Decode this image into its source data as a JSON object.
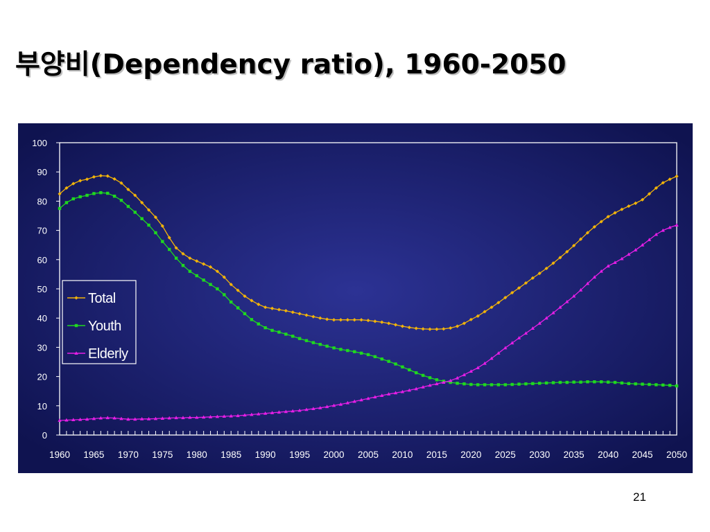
{
  "slide": {
    "title": "부양비(Dependency ratio), 1960-2050",
    "page_number": "21"
  },
  "chart_data": {
    "type": "line",
    "title": "",
    "xlabel": "",
    "ylabel": "",
    "xlim": [
      1960,
      2050
    ],
    "ylim": [
      0,
      100
    ],
    "y_ticks": [
      "0",
      "10",
      "20",
      "30",
      "40",
      "50",
      "60",
      "70",
      "80",
      "90",
      "100"
    ],
    "x_ticks": [
      "1960",
      "1965",
      "1970",
      "1975",
      "1980",
      "1985",
      "1990",
      "1995",
      "2000",
      "2005",
      "2010",
      "2015",
      "2020",
      "2025",
      "2030",
      "2035",
      "2040",
      "2045",
      "2050"
    ],
    "grid": false,
    "legend": "middle-left",
    "colors": {
      "plot_background_outer": "#0f1350",
      "plot_background_inner": "#2c3294",
      "axis": "#ffffff",
      "tick_text": "#ffffff"
    },
    "series": [
      {
        "name": "Total",
        "color": "#f2b40a",
        "marker": "diamond",
        "anchors": [
          [
            1960,
            82.5
          ],
          [
            1961,
            84.5
          ],
          [
            1962,
            86
          ],
          [
            1963,
            87
          ],
          [
            1964,
            87.5
          ],
          [
            1965,
            88.3
          ],
          [
            1966,
            88.7
          ],
          [
            1967,
            88.6
          ],
          [
            1968,
            87.6
          ],
          [
            1969,
            86.2
          ],
          [
            1970,
            84
          ],
          [
            1971,
            82
          ],
          [
            1972,
            79.5
          ],
          [
            1973,
            77
          ],
          [
            1974,
            74.5
          ],
          [
            1975,
            71.5
          ],
          [
            1976,
            67.5
          ],
          [
            1977,
            64
          ],
          [
            1978,
            62
          ],
          [
            1979,
            60.5
          ],
          [
            1980,
            59.5
          ],
          [
            1981,
            58.5
          ],
          [
            1982,
            57.5
          ],
          [
            1983,
            56
          ],
          [
            1984,
            54
          ],
          [
            1985,
            51.5
          ],
          [
            1986,
            49.5
          ],
          [
            1987,
            47.5
          ],
          [
            1988,
            46
          ],
          [
            1989,
            44.7
          ],
          [
            1990,
            43.7
          ],
          [
            1991,
            43.3
          ],
          [
            1992,
            42.9
          ],
          [
            1993,
            42.5
          ],
          [
            1994,
            42
          ],
          [
            1995,
            41.5
          ],
          [
            1996,
            41
          ],
          [
            1997,
            40.5
          ],
          [
            1998,
            40
          ],
          [
            1999,
            39.6
          ],
          [
            2000,
            39.4
          ],
          [
            2001,
            39.4
          ],
          [
            2002,
            39.4
          ],
          [
            2003,
            39.4
          ],
          [
            2004,
            39.4
          ],
          [
            2005,
            39.2
          ],
          [
            2006,
            38.9
          ],
          [
            2007,
            38.6
          ],
          [
            2008,
            38.2
          ],
          [
            2009,
            37.7
          ],
          [
            2010,
            37.2
          ],
          [
            2011,
            36.8
          ],
          [
            2012,
            36.5
          ],
          [
            2013,
            36.3
          ],
          [
            2014,
            36.2
          ],
          [
            2015,
            36.2
          ],
          [
            2016,
            36.3
          ],
          [
            2017,
            36.6
          ],
          [
            2018,
            37.2
          ],
          [
            2019,
            38.2
          ],
          [
            2020,
            39.5
          ],
          [
            2021,
            40.7
          ],
          [
            2022,
            42.2
          ],
          [
            2023,
            43.7
          ],
          [
            2024,
            45.3
          ],
          [
            2025,
            47
          ],
          [
            2026,
            48.7
          ],
          [
            2027,
            50.3
          ],
          [
            2028,
            52
          ],
          [
            2029,
            53.7
          ],
          [
            2030,
            55.3
          ],
          [
            2031,
            57
          ],
          [
            2032,
            58.8
          ],
          [
            2033,
            60.7
          ],
          [
            2034,
            62.7
          ],
          [
            2035,
            64.8
          ],
          [
            2036,
            67
          ],
          [
            2037,
            69.2
          ],
          [
            2038,
            71.2
          ],
          [
            2039,
            73
          ],
          [
            2040,
            74.7
          ],
          [
            2041,
            76
          ],
          [
            2042,
            77.2
          ],
          [
            2043,
            78.3
          ],
          [
            2044,
            79.3
          ],
          [
            2045,
            80.5
          ],
          [
            2046,
            82.5
          ],
          [
            2047,
            84.5
          ],
          [
            2048,
            86.3
          ],
          [
            2049,
            87.5
          ],
          [
            2050,
            88.5
          ]
        ]
      },
      {
        "name": "Youth",
        "color": "#1fd81f",
        "marker": "square",
        "anchors": [
          [
            1960,
            77.5
          ],
          [
            1961,
            79.5
          ],
          [
            1962,
            80.8
          ],
          [
            1963,
            81.5
          ],
          [
            1964,
            82
          ],
          [
            1965,
            82.6
          ],
          [
            1966,
            82.9
          ],
          [
            1967,
            82.7
          ],
          [
            1968,
            81.7
          ],
          [
            1969,
            80.3
          ],
          [
            1970,
            78.2
          ],
          [
            1971,
            76.2
          ],
          [
            1972,
            74
          ],
          [
            1973,
            71.8
          ],
          [
            1974,
            69.2
          ],
          [
            1975,
            66.2
          ],
          [
            1976,
            63.5
          ],
          [
            1977,
            60.5
          ],
          [
            1978,
            58
          ],
          [
            1979,
            56
          ],
          [
            1980,
            54.5
          ],
          [
            1981,
            53
          ],
          [
            1982,
            51.5
          ],
          [
            1983,
            50
          ],
          [
            1984,
            48
          ],
          [
            1985,
            45.5
          ],
          [
            1986,
            43.5
          ],
          [
            1987,
            41.5
          ],
          [
            1988,
            39.5
          ],
          [
            1989,
            38
          ],
          [
            1990,
            36.7
          ],
          [
            1991,
            35.8
          ],
          [
            1992,
            35.2
          ],
          [
            1993,
            34.5
          ],
          [
            1994,
            33.8
          ],
          [
            1995,
            33
          ],
          [
            1996,
            32.3
          ],
          [
            1997,
            31.6
          ],
          [
            1998,
            31
          ],
          [
            1999,
            30.4
          ],
          [
            2000,
            29.8
          ],
          [
            2001,
            29.3
          ],
          [
            2002,
            28.9
          ],
          [
            2003,
            28.5
          ],
          [
            2004,
            28
          ],
          [
            2005,
            27.5
          ],
          [
            2006,
            26.8
          ],
          [
            2007,
            26
          ],
          [
            2008,
            25.2
          ],
          [
            2009,
            24.3
          ],
          [
            2010,
            23.3
          ],
          [
            2011,
            22.3
          ],
          [
            2012,
            21.3
          ],
          [
            2013,
            20.4
          ],
          [
            2014,
            19.6
          ],
          [
            2015,
            18.9
          ],
          [
            2016,
            18.4
          ],
          [
            2017,
            18
          ],
          [
            2018,
            17.7
          ],
          [
            2019,
            17.5
          ],
          [
            2020,
            17.3
          ],
          [
            2021,
            17.2
          ],
          [
            2022,
            17.2
          ],
          [
            2023,
            17.2
          ],
          [
            2024,
            17.2
          ],
          [
            2025,
            17.2
          ],
          [
            2026,
            17.3
          ],
          [
            2027,
            17.4
          ],
          [
            2028,
            17.5
          ],
          [
            2029,
            17.6
          ],
          [
            2030,
            17.7
          ],
          [
            2031,
            17.8
          ],
          [
            2032,
            17.9
          ],
          [
            2033,
            18
          ],
          [
            2034,
            18
          ],
          [
            2035,
            18.1
          ],
          [
            2036,
            18.1
          ],
          [
            2037,
            18.2
          ],
          [
            2038,
            18.2
          ],
          [
            2039,
            18.2
          ],
          [
            2040,
            18.1
          ],
          [
            2041,
            18
          ],
          [
            2042,
            17.8
          ],
          [
            2043,
            17.6
          ],
          [
            2044,
            17.5
          ],
          [
            2045,
            17.4
          ],
          [
            2046,
            17.3
          ],
          [
            2047,
            17.2
          ],
          [
            2048,
            17.1
          ],
          [
            2049,
            17
          ],
          [
            2050,
            16.8
          ]
        ]
      },
      {
        "name": "Elderly",
        "color": "#e61ee6",
        "marker": "triangle",
        "anchors": [
          [
            1960,
            5
          ],
          [
            1961,
            5.1
          ],
          [
            1962,
            5.2
          ],
          [
            1963,
            5.3
          ],
          [
            1964,
            5.4
          ],
          [
            1965,
            5.6
          ],
          [
            1966,
            5.8
          ],
          [
            1967,
            5.9
          ],
          [
            1968,
            5.8
          ],
          [
            1969,
            5.6
          ],
          [
            1970,
            5.4
          ],
          [
            1971,
            5.4
          ],
          [
            1972,
            5.5
          ],
          [
            1973,
            5.5
          ],
          [
            1974,
            5.6
          ],
          [
            1975,
            5.7
          ],
          [
            1976,
            5.8
          ],
          [
            1977,
            5.9
          ],
          [
            1978,
            5.9
          ],
          [
            1979,
            6
          ],
          [
            1980,
            6
          ],
          [
            1981,
            6.1
          ],
          [
            1982,
            6.2
          ],
          [
            1983,
            6.3
          ],
          [
            1984,
            6.4
          ],
          [
            1985,
            6.5
          ],
          [
            1986,
            6.6
          ],
          [
            1987,
            6.8
          ],
          [
            1988,
            7
          ],
          [
            1989,
            7.2
          ],
          [
            1990,
            7.4
          ],
          [
            1991,
            7.6
          ],
          [
            1992,
            7.8
          ],
          [
            1993,
            8
          ],
          [
            1994,
            8.2
          ],
          [
            1995,
            8.4
          ],
          [
            1996,
            8.7
          ],
          [
            1997,
            9
          ],
          [
            1998,
            9.3
          ],
          [
            1999,
            9.7
          ],
          [
            2000,
            10.1
          ],
          [
            2001,
            10.5
          ],
          [
            2002,
            11
          ],
          [
            2003,
            11.5
          ],
          [
            2004,
            12
          ],
          [
            2005,
            12.5
          ],
          [
            2006,
            13
          ],
          [
            2007,
            13.5
          ],
          [
            2008,
            14
          ],
          [
            2009,
            14.4
          ],
          [
            2010,
            14.8
          ],
          [
            2011,
            15.3
          ],
          [
            2012,
            15.8
          ],
          [
            2013,
            16.4
          ],
          [
            2014,
            17
          ],
          [
            2015,
            17.5
          ],
          [
            2016,
            18
          ],
          [
            2017,
            18.6
          ],
          [
            2018,
            19.5
          ],
          [
            2019,
            20.6
          ],
          [
            2020,
            21.8
          ],
          [
            2021,
            23
          ],
          [
            2022,
            24.5
          ],
          [
            2023,
            26.2
          ],
          [
            2024,
            28
          ],
          [
            2025,
            29.8
          ],
          [
            2026,
            31.5
          ],
          [
            2027,
            33.2
          ],
          [
            2028,
            34.8
          ],
          [
            2029,
            36.5
          ],
          [
            2030,
            38.2
          ],
          [
            2031,
            40
          ],
          [
            2032,
            41.8
          ],
          [
            2033,
            43.7
          ],
          [
            2034,
            45.6
          ],
          [
            2035,
            47.5
          ],
          [
            2036,
            49.6
          ],
          [
            2037,
            51.8
          ],
          [
            2038,
            54
          ],
          [
            2039,
            56
          ],
          [
            2040,
            57.8
          ],
          [
            2041,
            59
          ],
          [
            2042,
            60.3
          ],
          [
            2043,
            61.8
          ],
          [
            2044,
            63.3
          ],
          [
            2045,
            65
          ],
          [
            2046,
            66.8
          ],
          [
            2047,
            68.6
          ],
          [
            2048,
            70
          ],
          [
            2049,
            71
          ],
          [
            2050,
            71.8
          ]
        ]
      }
    ]
  }
}
